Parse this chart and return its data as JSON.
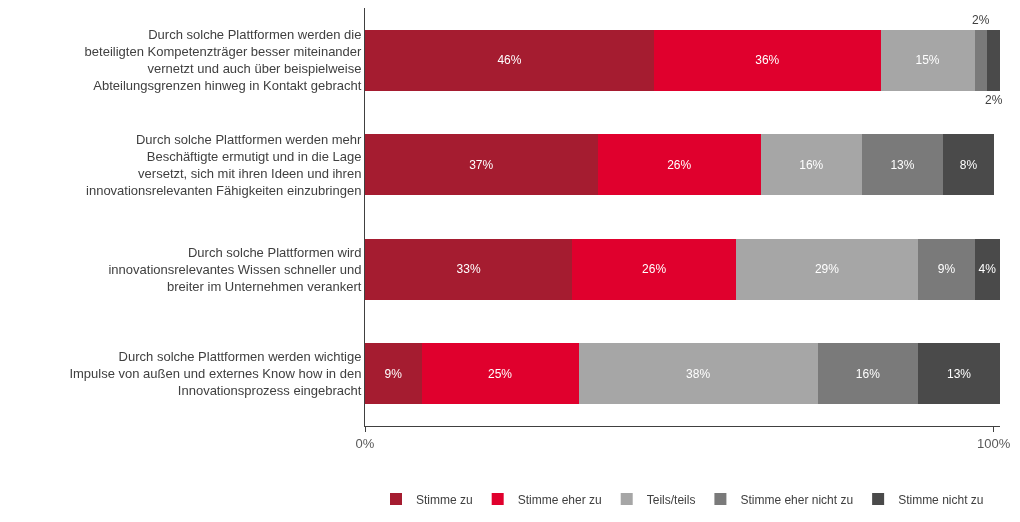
{
  "chart_data": {
    "type": "bar",
    "orientation": "horizontal",
    "stacked": true,
    "categories": [
      "Durch solche Plattformen werden die beteiligten Kompetenzträger besser miteinander vernetzt und auch über beispielweise Abteilungsgrenzen hinweg in Kontakt gebracht",
      "Durch solche Plattformen werden mehr Beschäftigte ermutigt und in die Lage versetzt, sich mit ihren Ideen und ihren innovationsrelevanten Fähigkeiten einzubringen",
      "Durch solche Plattformen wird innovationsrelevantes Wissen schneller und breiter im Unternehmen verankert",
      "Durch solche Plattformen werden wichtige Impulse von außen und externes Know how in den Innovationsprozess eingebracht"
    ],
    "series": [
      {
        "name": "Stimme zu",
        "color": "#a51c30",
        "values": [
          46,
          37,
          33,
          9
        ],
        "value_labels": [
          "46%",
          "37%",
          "33%",
          "9%"
        ]
      },
      {
        "name": "Stimme eher zu",
        "color": "#e0002d",
        "values": [
          36,
          26,
          26,
          25
        ],
        "value_labels": [
          "36%",
          "26%",
          "26%",
          "25%"
        ]
      },
      {
        "name": "Teils/teils",
        "color": "#a6a6a6",
        "values": [
          15,
          16,
          29,
          38
        ],
        "value_labels": [
          "15%",
          "16%",
          "29%",
          "38%"
        ]
      },
      {
        "name": "Stimme eher nicht zu",
        "color": "#7a7a7a",
        "values": [
          2,
          13,
          9,
          16
        ],
        "value_labels": [
          "2%",
          "13%",
          "9%",
          "16%"
        ]
      },
      {
        "name": "Stimme nicht zu",
        "color": "#4a4a4a",
        "values": [
          2,
          8,
          4,
          13
        ],
        "value_labels": [
          "2%",
          "8%",
          "4%",
          "13%"
        ]
      }
    ],
    "xlim": [
      0,
      101
    ],
    "xticks": [
      {
        "value": 0,
        "label": "0%"
      },
      {
        "value": 100,
        "label": "100%"
      }
    ],
    "grid": false,
    "legend": "bottom"
  }
}
